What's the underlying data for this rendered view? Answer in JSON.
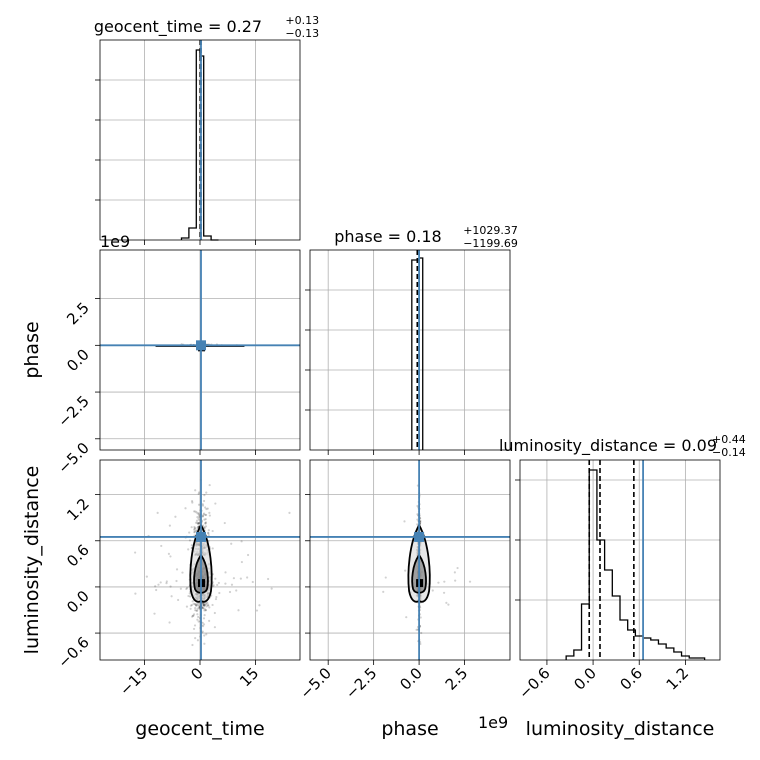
{
  "chart_data": {
    "type": "corner",
    "parameters": [
      "geocent_time",
      "phase",
      "luminosity_distance"
    ],
    "truth_color": "#4682b4",
    "hist_color": "#000000",
    "panels": {
      "geocent_time_hist": {
        "title_main": "geocent_time = 0.27",
        "title_sup": "+0.13",
        "title_sub": "−0.13",
        "xlim": [
          -27,
          27
        ],
        "ylim": [
          0,
          1
        ],
        "bin_edges": [
          -5,
          -3,
          -1,
          0,
          1,
          3,
          5
        ],
        "counts": [
          0.01,
          0.06,
          0.95,
          0.92,
          0.02,
          0.0
        ],
        "quantiles": [
          0.05,
          0.27
        ],
        "truth": 0.27
      },
      "phase_hist": {
        "title_main": "phase = 0.18",
        "title_sup": "+1029.37",
        "title_sub": "−1199.69",
        "xlim": [
          -6000000000.0,
          5000000000.0
        ],
        "ylim": [
          0,
          1
        ],
        "bin_edges": [
          -400000000.0,
          0,
          200000000.0
        ],
        "counts": [
          0.95,
          0.96
        ],
        "quantiles": [
          -100000000.0,
          0.0
        ],
        "truth": 0.0
      },
      "luminosity_distance_hist": {
        "title_main": "luminosity_distance = 0.09",
        "title_sup": "+0.44",
        "title_sub": "−0.14",
        "xlim": [
          -0.95,
          1.65
        ],
        "ylim": [
          0,
          1
        ],
        "bin_edges": [
          -0.35,
          -0.25,
          -0.15,
          -0.05,
          0.05,
          0.15,
          0.25,
          0.35,
          0.45,
          0.55,
          0.65,
          0.75,
          0.85,
          0.95,
          1.05,
          1.15,
          1.25,
          1.35,
          1.45
        ],
        "counts": [
          0.02,
          0.05,
          0.28,
          0.95,
          0.6,
          0.45,
          0.32,
          0.2,
          0.15,
          0.12,
          0.11,
          0.1,
          0.08,
          0.06,
          0.04,
          0.02,
          0.01,
          0.01
        ],
        "quantiles": [
          -0.05,
          0.09,
          0.53
        ],
        "truth": 0.65
      },
      "phase_vs_geocent_time": {
        "xlim": [
          -27,
          27
        ],
        "ylim": [
          -5600000000.0,
          5100000000.0
        ],
        "truth": [
          0.27,
          0.0
        ]
      },
      "luminosity_distance_vs_geocent_time": {
        "xlim": [
          -27,
          27
        ],
        "ylim": [
          -0.95,
          1.65
        ],
        "truth": [
          0.27,
          0.65
        ]
      },
      "luminosity_distance_vs_phase": {
        "xlim": [
          -6000000000.0,
          5000000000.0
        ],
        "ylim": [
          -0.95,
          1.65
        ],
        "truth": [
          0.0,
          0.65
        ]
      }
    },
    "ticks": {
      "geocent_time": [
        -15,
        0,
        15
      ],
      "geocent_time_labels": [
        "−15",
        "0",
        "15"
      ],
      "phase": [
        -5000000000.0,
        -2500000000.0,
        0,
        2500000000.0
      ],
      "phase_labels": [
        "−5.0",
        "−2.5",
        "0.0",
        "2.5"
      ],
      "phase_y": [
        -5000000000.0,
        -2500000000.0,
        0,
        2500000000.0
      ],
      "phase_y_labels": [
        "−5.0",
        "−2.5",
        "0.0",
        "2.5"
      ],
      "luminosity_distance": [
        -0.6,
        0.0,
        0.6,
        1.2
      ],
      "luminosity_distance_labels": [
        "−0.6",
        "0.0",
        "0.6",
        "1.2"
      ]
    },
    "axis_labels": {
      "x_geocent_time": "geocent_time",
      "x_phase": "phase",
      "x_luminosity_distance": "luminosity_distance",
      "y_phase": "phase",
      "y_luminosity_distance": "luminosity_distance"
    },
    "offset_texts": {
      "phase_y": "1e9",
      "phase_x": "1e9"
    }
  }
}
